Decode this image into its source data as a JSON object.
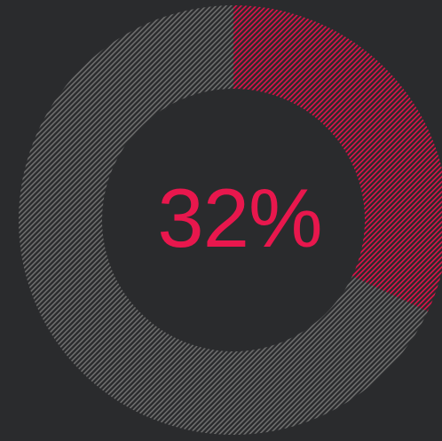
{
  "progress": {
    "value": 0.32,
    "label": "32%"
  },
  "colors": {
    "background": "#2a2b2d",
    "track": "#6e6e6e",
    "fill": "#e0134a",
    "label": "#e8174d"
  }
}
